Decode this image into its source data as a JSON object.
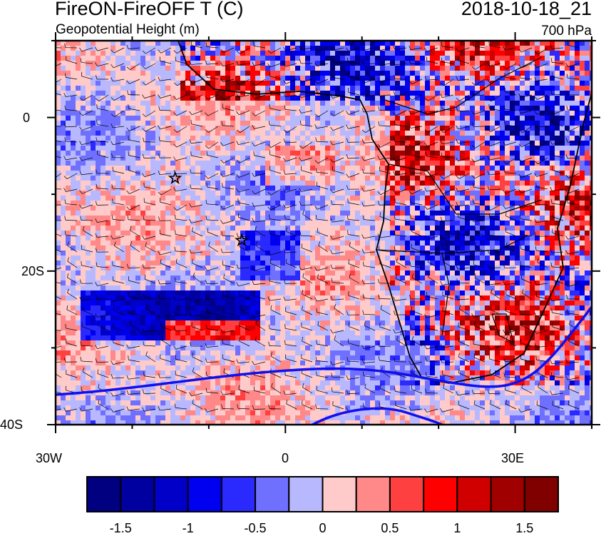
{
  "header": {
    "title": "FireON-FireOFF T (C)",
    "subtitle": "Geopotential Height (m)",
    "datetime": "2018-10-18_21",
    "level": "700 hPa"
  },
  "map": {
    "projection": "cylindrical equidistant",
    "lon_range": [
      -30,
      40
    ],
    "lat_range": [
      -40,
      10
    ],
    "x_ticks": [
      {
        "lon": -30,
        "label": "30W"
      },
      {
        "lon": 0,
        "label": "0"
      },
      {
        "lon": 30,
        "label": "30E"
      }
    ],
    "y_ticks": [
      {
        "lat": 0,
        "label": "0"
      },
      {
        "lat": -20,
        "label": "20S"
      },
      {
        "lat": -40,
        "label": "40S"
      }
    ],
    "markers": [
      {
        "type": "star",
        "lon": -14.4,
        "lat": -7.9
      },
      {
        "type": "star",
        "lon": -5.7,
        "lat": -16
      }
    ],
    "overlays": [
      "wind barbs",
      "geopotential height contour (blue)",
      "coastlines and country borders"
    ]
  },
  "colorbar": {
    "labels": [
      "-1.5",
      "-1",
      "-0.5",
      "0",
      "0.5",
      "1",
      "1.5"
    ],
    "levels": [
      -1.5,
      -1.25,
      -1,
      -0.75,
      -0.5,
      -0.25,
      0,
      0.25,
      0.5,
      0.75,
      1,
      1.25,
      1.5
    ],
    "colors": [
      "#000080",
      "#0000a0",
      "#0000c8",
      "#0000f0",
      "#2a2aff",
      "#7070ff",
      "#b8b8ff",
      "#ffcaca",
      "#ff8888",
      "#ff4040",
      "#ff0000",
      "#d00000",
      "#a00000",
      "#800000"
    ]
  }
}
